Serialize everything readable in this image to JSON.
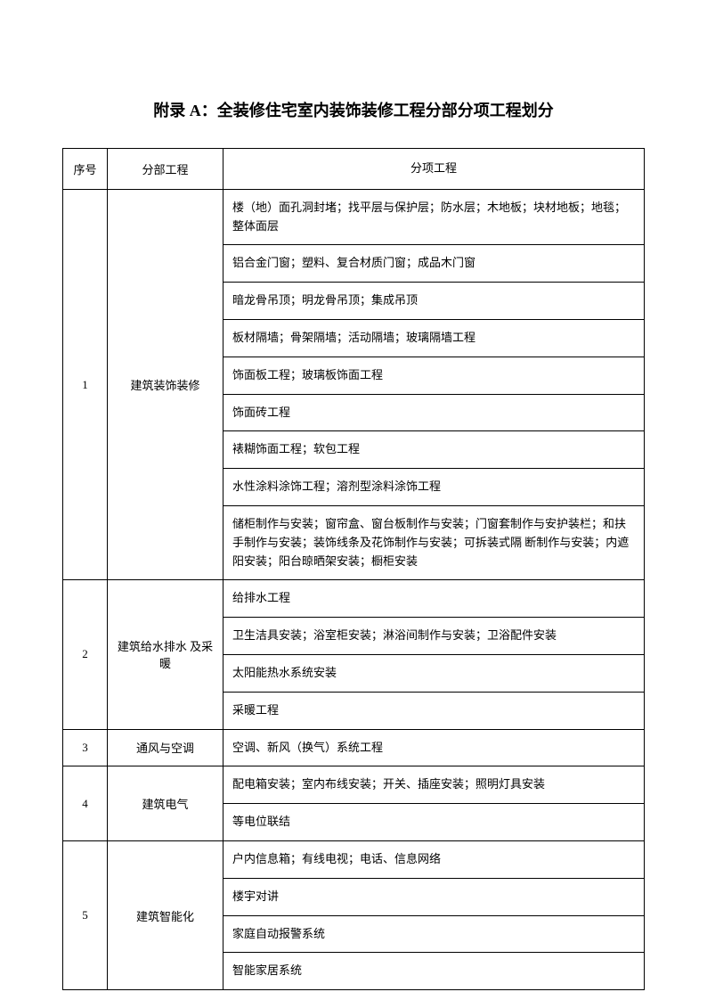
{
  "title": "附录 A：全装修住宅室内装饰装修工程分部分项工程划分",
  "headers": {
    "seq": "序号",
    "section": "分部工程",
    "item": "分项工程"
  },
  "rows": [
    {
      "seq": "1",
      "section": "建筑装饰装修",
      "items": [
        "楼（地）面孔洞封堵；找平层与保护层；防水层；木地板；块材地板；地毯； 整体面层",
        "铝合金门窗；塑料、复合材质门窗；成品木门窗",
        "暗龙骨吊顶；明龙骨吊顶；集成吊顶",
        "板材隔墙；骨架隔墙；活动隔墙；玻璃隔墙工程",
        "饰面板工程；玻璃板饰面工程",
        "饰面砖工程",
        "裱糊饰面工程；软包工程",
        "水性涂料涂饰工程；溶剂型涂料涂饰工程",
        "储柜制作与安装；窗帘盒、窗台板制作与安装；门窗套制作与安护装栏；和扶手制作与安装；装饰线条及花饰制作与安装；可拆装式隔\n断制作与安装；内遮阳安装；阳台晾晒架安装；橱柜安装"
      ]
    },
    {
      "seq": "2",
      "section": "建筑给水排水 及采暖",
      "items": [
        "给排水工程",
        "卫生洁具安装；浴室柜安装；淋浴间制作与安装；卫浴配件安装",
        "太阳能热水系统安装",
        "采暖工程"
      ]
    },
    {
      "seq": "3",
      "section": "通风与空调",
      "items": [
        "空调、新风（换气）系统工程"
      ]
    },
    {
      "seq": "4",
      "section": "建筑电气",
      "items": [
        "配电箱安装；室内布线安装；开关、插座安装；照明灯具安装",
        "等电位联结"
      ]
    },
    {
      "seq": "5",
      "section": "建筑智能化",
      "items": [
        "户内信息箱；有线电视；电话、信息网络",
        "楼宇对讲",
        "家庭自动报警系统",
        "智能家居系统"
      ]
    }
  ]
}
